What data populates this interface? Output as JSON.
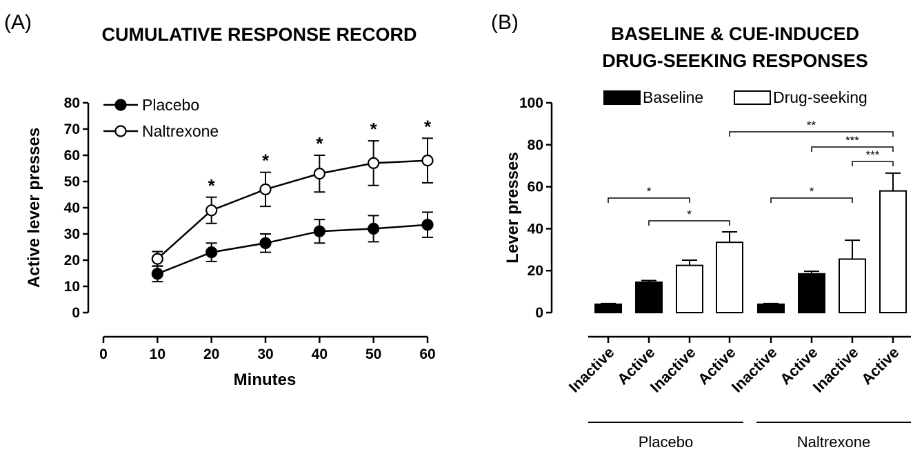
{
  "panel_a_label": "(A)",
  "panel_b_label": "(B)",
  "chart_data": [
    {
      "type": "line",
      "title": "CUMULATIVE RESPONSE RECORD",
      "xlabel": "Minutes",
      "ylabel": "Active lever presses",
      "xlim": [
        0,
        60
      ],
      "ylim": [
        0,
        80
      ],
      "xticks": [
        "0",
        "10",
        "20",
        "30",
        "40",
        "50",
        "60"
      ],
      "yticks": [
        "0",
        "10",
        "20",
        "30",
        "40",
        "50",
        "60",
        "70",
        "80"
      ],
      "x": [
        10,
        20,
        30,
        40,
        50,
        60
      ],
      "series": [
        {
          "name": "Placebo",
          "marker": "filled-circle",
          "values": [
            14.8,
            23.0,
            26.5,
            31.0,
            32.0,
            33.5
          ],
          "errors": [
            3.0,
            3.5,
            3.5,
            4.5,
            5.0,
            4.8
          ]
        },
        {
          "name": "Naltrexone",
          "marker": "open-circle",
          "values": [
            20.5,
            39.0,
            47.0,
            53.0,
            57.0,
            58.0
          ],
          "errors": [
            2.8,
            5.0,
            6.5,
            7.0,
            8.5,
            8.5
          ]
        }
      ],
      "significance": [
        {
          "x": 20,
          "label": "*"
        },
        {
          "x": 30,
          "label": "*"
        },
        {
          "x": 40,
          "label": "*"
        },
        {
          "x": 50,
          "label": "*"
        },
        {
          "x": 60,
          "label": "*"
        }
      ],
      "legend_position": "top-left",
      "grid": false
    },
    {
      "type": "bar",
      "title": [
        "BASELINE & CUE-INDUCED",
        "DRUG-SEEKING RESPONSES"
      ],
      "ylabel": "Lever presses",
      "ylim": [
        0,
        100
      ],
      "yticks": [
        "0",
        "20",
        "40",
        "60",
        "80",
        "100"
      ],
      "legend": [
        {
          "name": "Baseline",
          "fill": "#000000"
        },
        {
          "name": "Drug-seeking",
          "fill": "#ffffff"
        }
      ],
      "legend_position": "top",
      "categories": [
        "Inactive",
        "Active",
        "Inactive",
        "Active",
        "Inactive",
        "Active",
        "Inactive",
        "Active"
      ],
      "bar_kind": [
        "Baseline",
        "Baseline",
        "Drug-seeking",
        "Drug-seeking",
        "Baseline",
        "Baseline",
        "Drug-seeking",
        "Drug-seeking"
      ],
      "values": [
        4,
        14.5,
        22.5,
        33.5,
        4,
        18.5,
        25.5,
        58
      ],
      "errors": [
        0.3,
        0.8,
        2.5,
        5,
        0.3,
        1.2,
        9,
        8.5
      ],
      "groups": [
        {
          "name": "Placebo",
          "bars": [
            0,
            1,
            2,
            3
          ]
        },
        {
          "name": "Naltrexone",
          "bars": [
            4,
            5,
            6,
            7
          ]
        }
      ],
      "significance": [
        {
          "from": 0,
          "to": 2,
          "label": "*"
        },
        {
          "from": 1,
          "to": 3,
          "label": "*"
        },
        {
          "from": 4,
          "to": 6,
          "label": "*"
        },
        {
          "from": 3,
          "to": 7,
          "label": "**"
        },
        {
          "from": 5,
          "to": 7,
          "label": "***"
        },
        {
          "from": 6,
          "to": 7,
          "label": "***"
        }
      ],
      "grid": false
    }
  ]
}
